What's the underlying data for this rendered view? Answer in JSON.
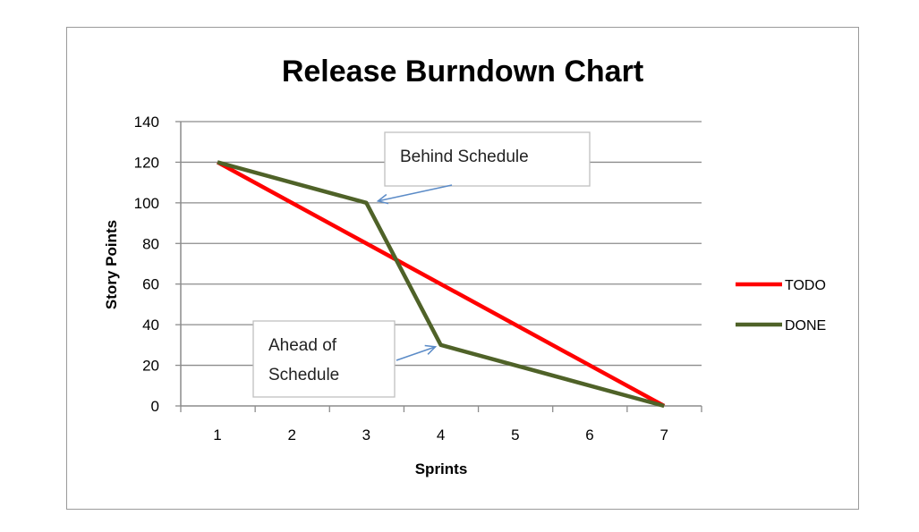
{
  "chart_data": {
    "type": "line",
    "title": "Release Burndown Chart",
    "xlabel": "Sprints",
    "ylabel": "Story Points",
    "x": [
      1,
      2,
      3,
      4,
      5,
      6,
      7
    ],
    "ylim": [
      0,
      140
    ],
    "yticks": [
      0,
      20,
      40,
      60,
      80,
      100,
      120,
      140
    ],
    "grid": true,
    "legend_position": "right",
    "series": [
      {
        "name": "TODO",
        "color": "#ff0000",
        "values": [
          120,
          100,
          80,
          60,
          40,
          20,
          0
        ]
      },
      {
        "name": "DONE",
        "color": "#4f6228",
        "values": [
          120,
          110,
          100,
          30,
          20,
          10,
          0
        ]
      }
    ],
    "annotations": [
      {
        "lines": [
          "Behind Schedule"
        ],
        "points_to": {
          "x": 3,
          "y": 100
        }
      },
      {
        "lines": [
          "Ahead of",
          "Schedule"
        ],
        "points_to": {
          "x": 4,
          "y": 30
        }
      }
    ]
  }
}
